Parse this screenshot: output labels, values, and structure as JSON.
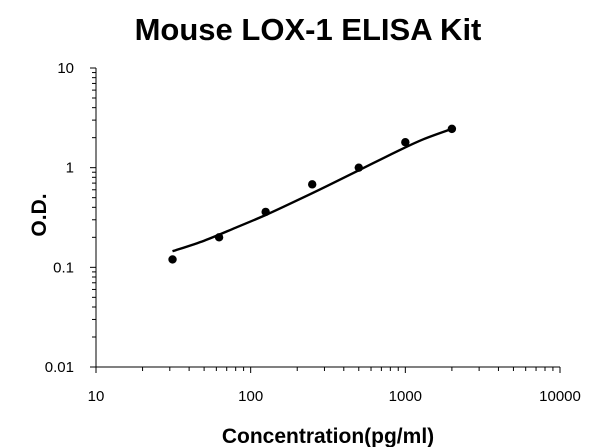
{
  "chart_data": {
    "type": "scatter",
    "title": "Mouse LOX-1 ELISA Kit",
    "xlabel": "Concentration(pg/ml)",
    "ylabel": "O.D.",
    "xscale": "log",
    "yscale": "log",
    "xlim": [
      10,
      10000
    ],
    "ylim": [
      0.01,
      10
    ],
    "xticks": [
      10,
      100,
      1000,
      10000
    ],
    "xtick_labels": [
      "10",
      "100",
      "1000",
      "10000"
    ],
    "yticks": [
      0.01,
      0.1,
      1,
      10
    ],
    "ytick_labels": [
      "0.01",
      "0.1",
      "1",
      "10"
    ],
    "grid": false,
    "legend": "none",
    "series": [
      {
        "x": [
          31.25,
          62.5,
          125,
          250,
          500,
          1000,
          2000
        ],
        "y": [
          0.12,
          0.2,
          0.36,
          0.68,
          1.0,
          1.8,
          2.45
        ]
      }
    ],
    "fit_curve": {
      "x": [
        31.25,
        50,
        80,
        125,
        200,
        315,
        500,
        800,
        1260,
        2000
      ],
      "y": [
        0.145,
        0.185,
        0.25,
        0.335,
        0.47,
        0.66,
        0.94,
        1.35,
        1.88,
        2.45
      ]
    }
  }
}
